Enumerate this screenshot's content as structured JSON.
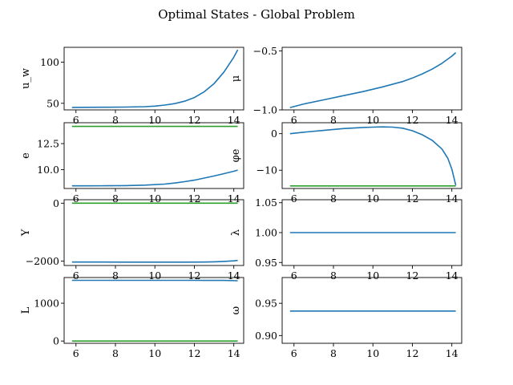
{
  "figure": {
    "title": "Optimal States - Global Problem"
  },
  "colors": {
    "blue": "#1f77b4",
    "green": "#2ca02c",
    "axis": "#000000"
  },
  "chart_data": [
    {
      "type": "line",
      "ylabel": "u_w",
      "xlim": [
        5.4,
        14.5
      ],
      "ylim": [
        42,
        118
      ],
      "xticks": [
        6,
        8,
        10,
        12,
        14
      ],
      "yticks": [
        50,
        100
      ],
      "xticklabels": [
        "6",
        "8",
        "10",
        "12",
        "14"
      ],
      "yticklabels": [
        "50",
        "100"
      ],
      "series": [
        {
          "color": "#1f77b4",
          "x": [
            5.8,
            6.5,
            7.5,
            8.5,
            9.5,
            10.0,
            10.5,
            11.0,
            11.5,
            12.0,
            12.5,
            13.0,
            13.5,
            14.0,
            14.2
          ],
          "y": [
            45,
            45.1,
            45.2,
            45.4,
            45.9,
            46.6,
            47.8,
            49.6,
            52.5,
            57.0,
            64,
            74,
            88,
            106,
            115
          ]
        }
      ]
    },
    {
      "type": "line",
      "ylabel": "μ",
      "xlim": [
        5.4,
        14.5
      ],
      "ylim": [
        -1.0,
        -0.47
      ],
      "xticks": [
        6,
        8,
        10,
        12,
        14
      ],
      "yticks": [
        -1.0,
        -0.5
      ],
      "xticklabels": [
        "6",
        "8",
        "10",
        "12",
        "14"
      ],
      "yticklabels": [
        "−1.0",
        "−0.5"
      ],
      "series": [
        {
          "color": "#1f77b4",
          "x": [
            5.8,
            6.5,
            7.5,
            8.5,
            9.5,
            10.5,
            11.5,
            12.0,
            12.5,
            13.0,
            13.5,
            14.0,
            14.2
          ],
          "y": [
            -0.98,
            -0.95,
            -0.915,
            -0.88,
            -0.845,
            -0.805,
            -0.76,
            -0.73,
            -0.695,
            -0.655,
            -0.605,
            -0.545,
            -0.515
          ]
        }
      ]
    },
    {
      "type": "line",
      "ylabel": "e",
      "xlim": [
        5.4,
        14.5
      ],
      "ylim": [
        8.2,
        14.5
      ],
      "xticks": [
        6,
        8,
        10,
        12,
        14
      ],
      "yticks": [
        10.0,
        12.5
      ],
      "xticklabels": [
        "6",
        "8",
        "10",
        "12",
        "14"
      ],
      "yticklabels": [
        "10.0",
        "12.5"
      ],
      "series": [
        {
          "color": "#2ca02c",
          "x": [
            5.8,
            14.2
          ],
          "y": [
            14.15,
            14.15
          ]
        },
        {
          "color": "#1f77b4",
          "x": [
            5.8,
            6.5,
            7.5,
            8.5,
            9.5,
            10.5,
            11.0,
            11.5,
            12.0,
            12.5,
            13.0,
            13.5,
            14.0,
            14.2
          ],
          "y": [
            8.45,
            8.45,
            8.46,
            8.48,
            8.52,
            8.62,
            8.72,
            8.85,
            9.0,
            9.2,
            9.4,
            9.62,
            9.85,
            9.96
          ]
        }
      ]
    },
    {
      "type": "line",
      "ylabel": "φe",
      "xlim": [
        5.4,
        14.5
      ],
      "ylim": [
        -15,
        3
      ],
      "xticks": [
        6,
        8,
        10,
        12,
        14
      ],
      "yticks": [
        -10,
        0
      ],
      "xticklabels": [
        "6",
        "8",
        "10",
        "12",
        "14"
      ],
      "yticklabels": [
        "−10",
        "0"
      ],
      "series": [
        {
          "color": "#2ca02c",
          "x": [
            5.8,
            14.2
          ],
          "y": [
            -14.3,
            -14.3
          ]
        },
        {
          "color": "#1f77b4",
          "x": [
            5.8,
            6.5,
            7.5,
            8.5,
            9.5,
            10.0,
            10.5,
            11.0,
            11.5,
            12.0,
            12.5,
            13.0,
            13.5,
            13.8,
            14.0,
            14.2
          ],
          "y": [
            0,
            0.4,
            0.9,
            1.4,
            1.7,
            1.8,
            1.85,
            1.8,
            1.5,
            0.8,
            -0.3,
            -1.8,
            -4.2,
            -6.8,
            -9.7,
            -14.1
          ]
        }
      ]
    },
    {
      "type": "line",
      "ylabel": "Y",
      "xlim": [
        5.4,
        14.5
      ],
      "ylim": [
        -2150,
        120
      ],
      "xticks": [
        6,
        8,
        10,
        12,
        14
      ],
      "yticks": [
        -2000,
        0
      ],
      "xticklabels": [
        "6",
        "8",
        "10",
        "12",
        "14"
      ],
      "yticklabels": [
        "−2000",
        "0"
      ],
      "series": [
        {
          "color": "#2ca02c",
          "x": [
            5.8,
            14.2
          ],
          "y": [
            0,
            0
          ]
        },
        {
          "color": "#1f77b4",
          "x": [
            5.8,
            7.0,
            8.5,
            10.0,
            11.5,
            12.5,
            13.0,
            13.5,
            14.0,
            14.2
          ],
          "y": [
            -2030,
            -2032,
            -2034,
            -2035,
            -2034,
            -2030,
            -2022,
            -2010,
            -1990,
            -1975
          ]
        }
      ]
    },
    {
      "type": "line",
      "ylabel": "λ",
      "xlim": [
        5.4,
        14.5
      ],
      "ylim": [
        0.945,
        1.055
      ],
      "xticks": [
        6,
        8,
        10,
        12,
        14
      ],
      "yticks": [
        0.95,
        1.0,
        1.05
      ],
      "xticklabels": [
        "6",
        "8",
        "10",
        "12",
        "14"
      ],
      "yticklabels": [
        "0.95",
        "1.00",
        "1.05"
      ],
      "series": [
        {
          "color": "#1f77b4",
          "x": [
            5.8,
            14.2
          ],
          "y": [
            1.0,
            1.0
          ]
        }
      ]
    },
    {
      "type": "line",
      "ylabel": "L",
      "xlim": [
        5.4,
        14.5
      ],
      "ylim": [
        -60,
        1680
      ],
      "xticks": [
        6,
        8,
        10,
        12,
        14
      ],
      "yticks": [
        0,
        1000
      ],
      "xticklabels": [
        "6",
        "8",
        "10",
        "12",
        "14"
      ],
      "yticklabels": [
        "0",
        "1000"
      ],
      "series": [
        {
          "color": "#2ca02c",
          "x": [
            5.8,
            14.2
          ],
          "y": [
            0,
            0
          ]
        },
        {
          "color": "#1f77b4",
          "x": [
            5.8,
            8.0,
            10.0,
            12.0,
            13.5,
            14.2
          ],
          "y": [
            1605,
            1606,
            1606,
            1606,
            1603,
            1595
          ]
        }
      ]
    },
    {
      "type": "line",
      "ylabel": "ω",
      "xlim": [
        5.4,
        14.5
      ],
      "ylim": [
        0.888,
        0.99
      ],
      "xticks": [
        6,
        8,
        10,
        12,
        14
      ],
      "yticks": [
        0.9,
        0.95
      ],
      "xticklabels": [
        "6",
        "8",
        "10",
        "12",
        "14"
      ],
      "yticklabels": [
        "0.90",
        "0.95"
      ],
      "series": [
        {
          "color": "#1f77b4",
          "x": [
            5.8,
            14.2
          ],
          "y": [
            0.938,
            0.938
          ]
        }
      ]
    }
  ]
}
